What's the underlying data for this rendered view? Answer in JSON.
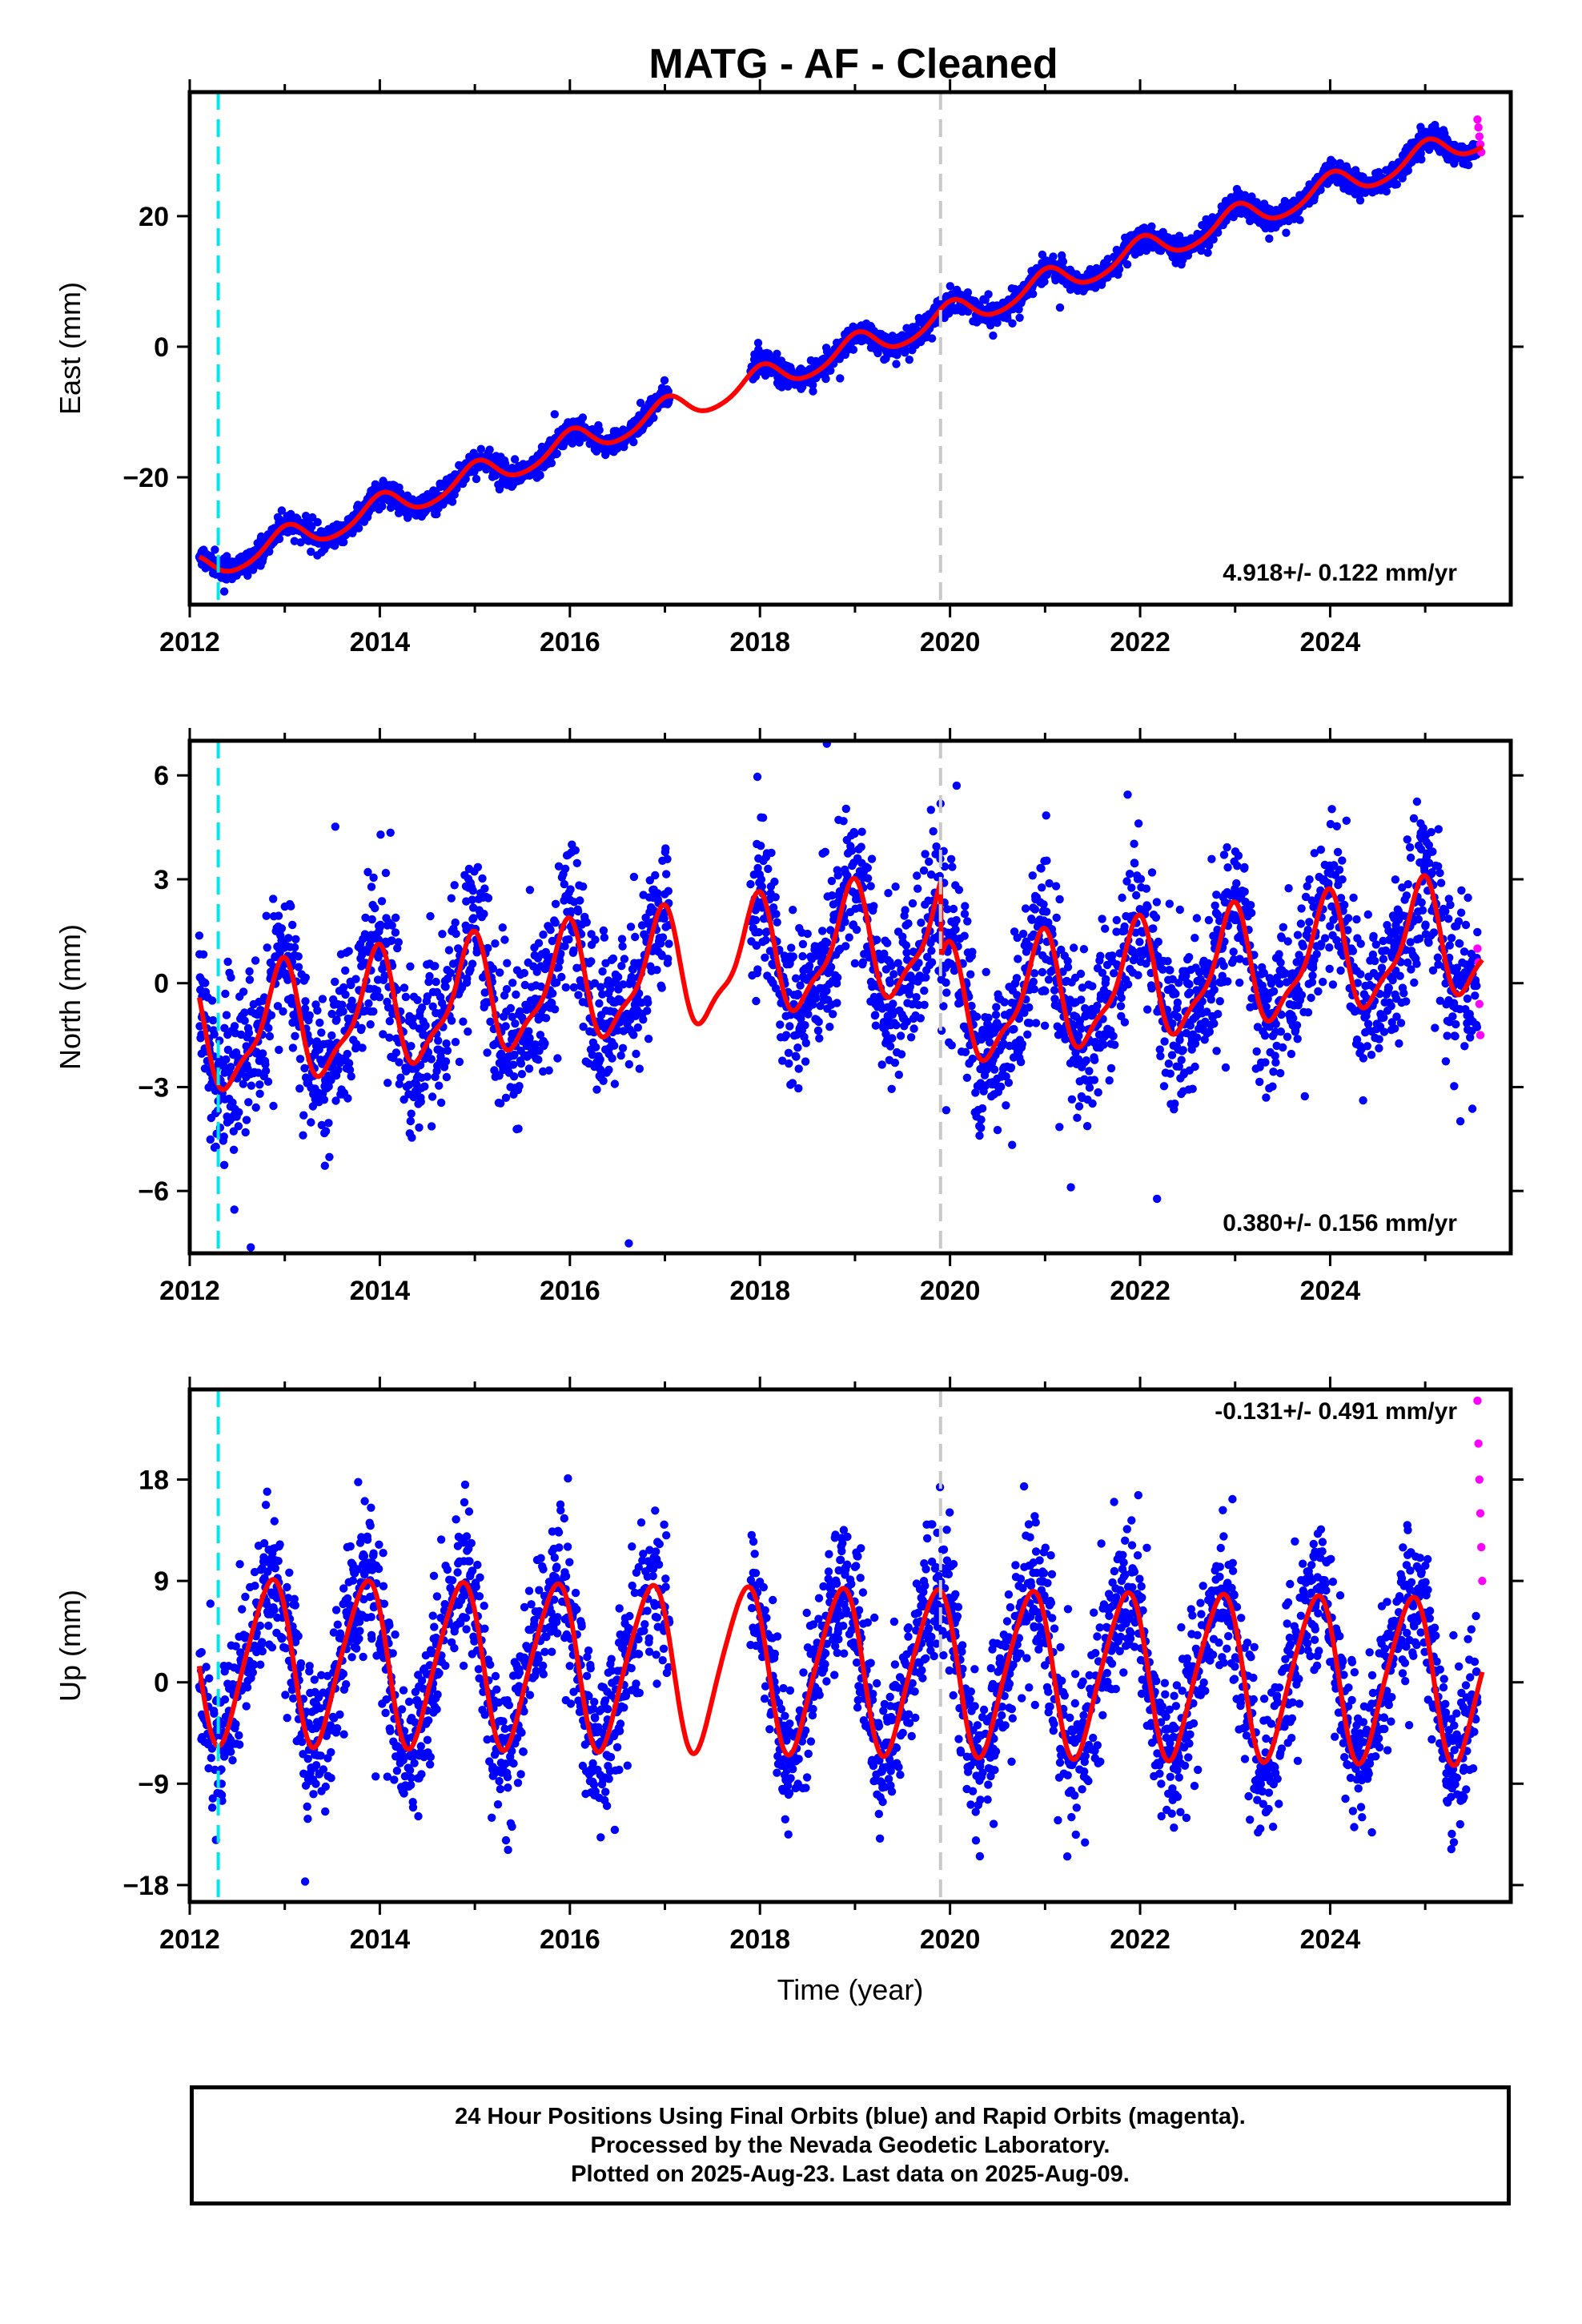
{
  "page": {
    "title": "MATG  - AF - Cleaned"
  },
  "colors": {
    "final_orbits": "#0000ff",
    "rapid_orbits": "#ff00ff",
    "model_fit": "#ff0000",
    "cyan_marker": "#00e5ee",
    "gray_marker": "#c8c8c8"
  },
  "chart_data": [
    {
      "type": "scatter",
      "id": "east",
      "ylabel": "East (mm)",
      "xlabel": "",
      "xlim": [
        2012.0,
        2025.9
      ],
      "ylim": [
        -39.5,
        39
      ],
      "xticks": [
        "2012",
        "2014",
        "2016",
        "2018",
        "2020",
        "2022",
        "2024"
      ],
      "xtick_values": [
        2012,
        2014,
        2016,
        2018,
        2020,
        2022,
        2024
      ],
      "yticks": [
        "−20",
        "0",
        "20"
      ],
      "ytick_values": [
        -20,
        0,
        20
      ],
      "rate_label": "4.918+/- 0.122 mm/yr",
      "model": {
        "intercept": -34.2,
        "rate": 4.918,
        "t0": 2012.1,
        "annual_amp": 2.1,
        "annual_phase": 1.5,
        "semi_amp": 0.3,
        "scatter_sd": 0.9,
        "gap": [
          2017.05,
          2017.9
        ]
      },
      "vertical_markers": [
        {
          "x": 2012.3,
          "style": "cyan"
        },
        {
          "x": 2019.9,
          "style": "gray"
        }
      ],
      "rapid_points": {
        "x": [
          2025.55,
          2025.56,
          2025.57,
          2025.58,
          2025.59
        ],
        "y": [
          34.8,
          33.6,
          32.2,
          31.0,
          29.8
        ]
      }
    },
    {
      "type": "scatter",
      "id": "north",
      "ylabel": "North (mm)",
      "xlabel": "",
      "xlim": [
        2012.0,
        2025.9
      ],
      "ylim": [
        -7.8,
        7.0
      ],
      "xticks": [
        "2012",
        "2014",
        "2016",
        "2018",
        "2020",
        "2022",
        "2024"
      ],
      "xtick_values": [
        2012,
        2014,
        2016,
        2018,
        2020,
        2022,
        2024
      ],
      "yticks": [
        "6",
        "3",
        "0",
        "−3",
        "−6"
      ],
      "ytick_values": [
        6,
        3,
        0,
        -3,
        -6
      ],
      "rate_label": "0.380+/- 0.156 mm/yr",
      "model": {
        "intercept": -1.6,
        "rate": 0.38,
        "t0": 2012.1,
        "annual_amp": 1.6,
        "annual_phase": 1.9,
        "semi_amp": 0.5,
        "scatter_sd": 1.1,
        "offset_at": 2019.9,
        "offset": -2.2,
        "gap": [
          2017.05,
          2017.9
        ]
      },
      "vertical_markers": [
        {
          "x": 2012.3,
          "style": "cyan"
        },
        {
          "x": 2019.9,
          "style": "gray"
        }
      ],
      "rapid_points": {
        "x": [
          2025.55,
          2025.56,
          2025.57,
          2025.58
        ],
        "y": [
          1.0,
          0.6,
          -0.6,
          -1.5
        ]
      }
    },
    {
      "type": "scatter",
      "id": "up",
      "ylabel": "Up (mm)",
      "xlabel": "Time (year)",
      "xlim": [
        2012.0,
        2025.9
      ],
      "ylim": [
        -19.5,
        26
      ],
      "xticks": [
        "2012",
        "2014",
        "2016",
        "2018",
        "2020",
        "2022",
        "2024"
      ],
      "xtick_values": [
        2012,
        2014,
        2016,
        2018,
        2020,
        2022,
        2024
      ],
      "yticks": [
        "18",
        "9",
        "0",
        "−9",
        "−18"
      ],
      "ytick_values": [
        18,
        9,
        0,
        -9,
        -18
      ],
      "rate_label": "-0.131+/- 0.491 mm/yr",
      "model": {
        "intercept": 2.0,
        "rate": -0.131,
        "t0": 2012.1,
        "annual_amp": 7.2,
        "annual_phase": 2.6,
        "semi_amp": 1.0,
        "scatter_sd": 3.2,
        "gap": [
          2017.05,
          2017.9
        ]
      },
      "vertical_markers": [
        {
          "x": 2012.3,
          "style": "cyan"
        },
        {
          "x": 2019.9,
          "style": "gray"
        }
      ],
      "rapid_points": {
        "x": [
          2025.55,
          2025.56,
          2025.57,
          2025.58,
          2025.59,
          2025.6
        ],
        "y": [
          25.0,
          21.2,
          18.0,
          15.0,
          12.0,
          9.0
        ]
      }
    }
  ],
  "footer": {
    "line1": "24 Hour Positions Using Final Orbits (blue) and Rapid Orbits (magenta).",
    "line2": "Processed by the Nevada Geodetic Laboratory.",
    "line3": "Plotted on 2025-Aug-23. Last data on 2025-Aug-09."
  }
}
